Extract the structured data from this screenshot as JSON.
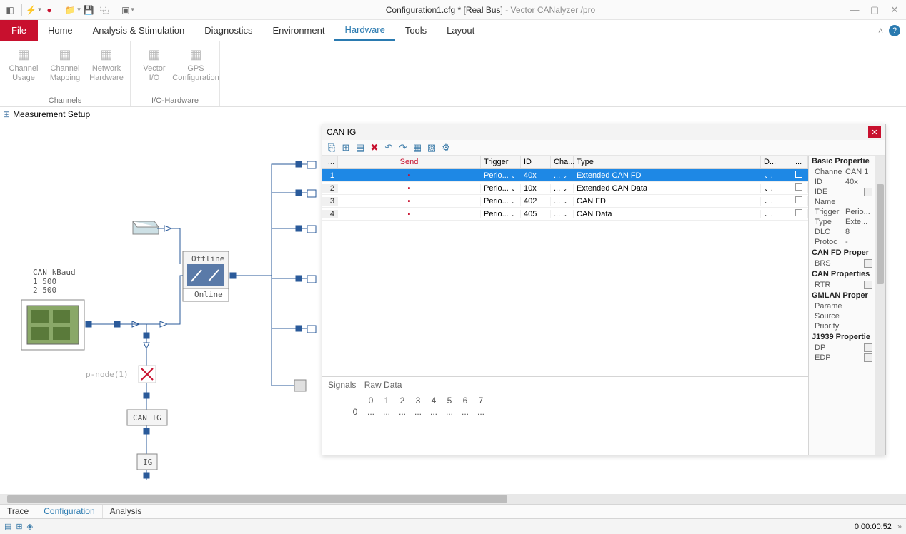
{
  "titlebar": {
    "doc": "Configuration1.cfg * [Real Bus]",
    "app": " - Vector CANalyzer /pro"
  },
  "ribbon": {
    "file": "File",
    "tabs": [
      "Home",
      "Analysis & Stimulation",
      "Diagnostics",
      "Environment",
      "Hardware",
      "Tools",
      "Layout"
    ],
    "active": "Hardware",
    "groups": [
      {
        "label": "Channels",
        "buttons": [
          {
            "name": "channel-usage",
            "l1": "Channel",
            "l2": "Usage"
          },
          {
            "name": "channel-mapping",
            "l1": "Channel",
            "l2": "Mapping"
          },
          {
            "name": "network-hardware",
            "l1": "Network",
            "l2": "Hardware"
          }
        ]
      },
      {
        "label": "I/O-Hardware",
        "buttons": [
          {
            "name": "vector-io",
            "l1": "Vector",
            "l2": "I/O"
          },
          {
            "name": "gps-config",
            "l1": "GPS",
            "l2": "Configuration"
          }
        ]
      }
    ]
  },
  "subheader": "Measurement Setup",
  "dialog": {
    "title": "CAN IG",
    "columns": {
      "idx": "...",
      "send": "Send",
      "trigger": "Trigger",
      "id": "ID",
      "cha": "Cha...",
      "type": "Type",
      "d": "D...",
      "chk": "..."
    },
    "rows": [
      {
        "i": "1",
        "send": "▪",
        "trig": "Perio...",
        "id": "40x",
        "cha": "...",
        "type": "Extended CAN FD",
        "d": "",
        "sel": true
      },
      {
        "i": "2",
        "send": "▪",
        "trig": "Perio...",
        "id": "10x",
        "cha": "...",
        "type": "Extended CAN Data",
        "d": "",
        "sel": false
      },
      {
        "i": "3",
        "send": "▪",
        "trig": "Perio...",
        "id": "402",
        "cha": "...",
        "type": "CAN FD",
        "d": "",
        "sel": false
      },
      {
        "i": "4",
        "send": "▪",
        "trig": "Perio...",
        "id": "405",
        "cha": "...",
        "type": "CAN Data",
        "d": "",
        "sel": false
      }
    ],
    "props": {
      "sections": [
        {
          "title": "Basic Propertie",
          "rows": [
            {
              "k": "Channe",
              "v": "CAN 1"
            },
            {
              "k": "ID",
              "v": "40x"
            },
            {
              "k": "IDE",
              "chk": true
            },
            {
              "k": "Name",
              "v": ""
            },
            {
              "k": "Trigger",
              "v": "Perio..."
            },
            {
              "k": "Type",
              "v": "Exte..."
            },
            {
              "k": "DLC",
              "v": "8"
            },
            {
              "k": "Protoc",
              "v": "-"
            }
          ]
        },
        {
          "title": "CAN FD Proper",
          "rows": [
            {
              "k": "BRS",
              "chk": false
            }
          ]
        },
        {
          "title": "CAN Properties",
          "rows": [
            {
              "k": "RTR",
              "chk": false
            }
          ]
        },
        {
          "title": "GMLAN Proper",
          "rows": [
            {
              "k": "Parame",
              "v": ""
            },
            {
              "k": "Source",
              "v": ""
            },
            {
              "k": "Priority",
              "v": ""
            }
          ]
        },
        {
          "title": "J1939 Propertie",
          "rows": [
            {
              "k": "DP",
              "chk": false
            },
            {
              "k": "EDP",
              "chk": false
            }
          ]
        }
      ]
    },
    "raw": {
      "tab1": "Signals",
      "tab2": "Raw Data",
      "head": [
        "0",
        "1",
        "2",
        "3",
        "4",
        "5",
        "6",
        "7"
      ],
      "row0": [
        "0",
        "...",
        "...",
        "...",
        "...",
        "...",
        "...",
        "...",
        "..."
      ]
    }
  },
  "diagram": {
    "can_label": "CAN   kBaud",
    "ch1": "1   500",
    "ch2": "2   500",
    "offline": "Offline",
    "online": "Online",
    "pnode": "p-node(1)",
    "canig": "CAN IG",
    "ig": "IG"
  },
  "bottom_tabs": [
    "Trace",
    "Configuration",
    "Analysis"
  ],
  "bottom_active": "Configuration",
  "status_time": "0:00:00:52"
}
